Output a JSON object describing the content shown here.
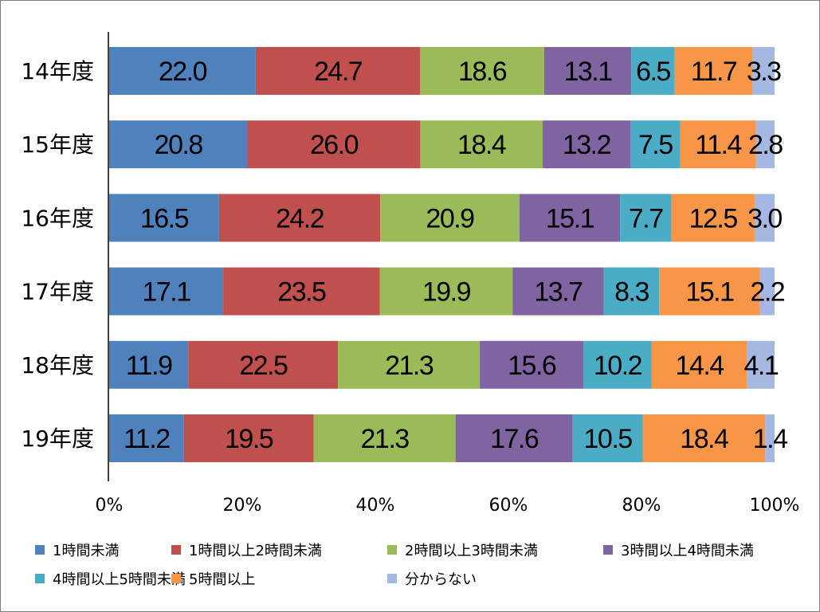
{
  "chart_data": {
    "type": "bar",
    "orientation": "horizontal",
    "stacked": "percent",
    "categories": [
      "14年度",
      "15年度",
      "16年度",
      "17年度",
      "18年度",
      "19年度"
    ],
    "series": [
      {
        "name": "1時間未満",
        "color": "#4f81bd",
        "values": [
          22.0,
          20.8,
          16.5,
          17.1,
          11.9,
          11.2
        ]
      },
      {
        "name": "1時間以上2時間未満",
        "color": "#c0504d",
        "values": [
          24.7,
          26.0,
          24.2,
          23.5,
          22.5,
          19.5
        ]
      },
      {
        "name": "2時間以上3時間未満",
        "color": "#9bbb59",
        "values": [
          18.6,
          18.4,
          20.9,
          19.9,
          21.3,
          21.3
        ]
      },
      {
        "name": "3時間以上4時間未満",
        "color": "#8064a2",
        "values": [
          13.1,
          13.2,
          15.1,
          13.7,
          15.6,
          17.6
        ]
      },
      {
        "name": "4時間以上5時間未満",
        "color": "#4bacc6",
        "values": [
          6.5,
          7.5,
          7.7,
          8.3,
          10.2,
          10.5
        ]
      },
      {
        "name": "5時間以上",
        "color": "#f79646",
        "values": [
          11.7,
          11.4,
          12.5,
          15.1,
          14.4,
          18.4
        ]
      },
      {
        "name": "分からない",
        "color": "#a5b8e1",
        "values": [
          3.3,
          2.8,
          3.0,
          2.2,
          4.1,
          1.4
        ]
      }
    ],
    "x_ticks": [
      "0%",
      "20%",
      "40%",
      "60%",
      "80%",
      "100%"
    ],
    "xlim": [
      0,
      100
    ],
    "legend_position": "bottom",
    "grid": false
  }
}
